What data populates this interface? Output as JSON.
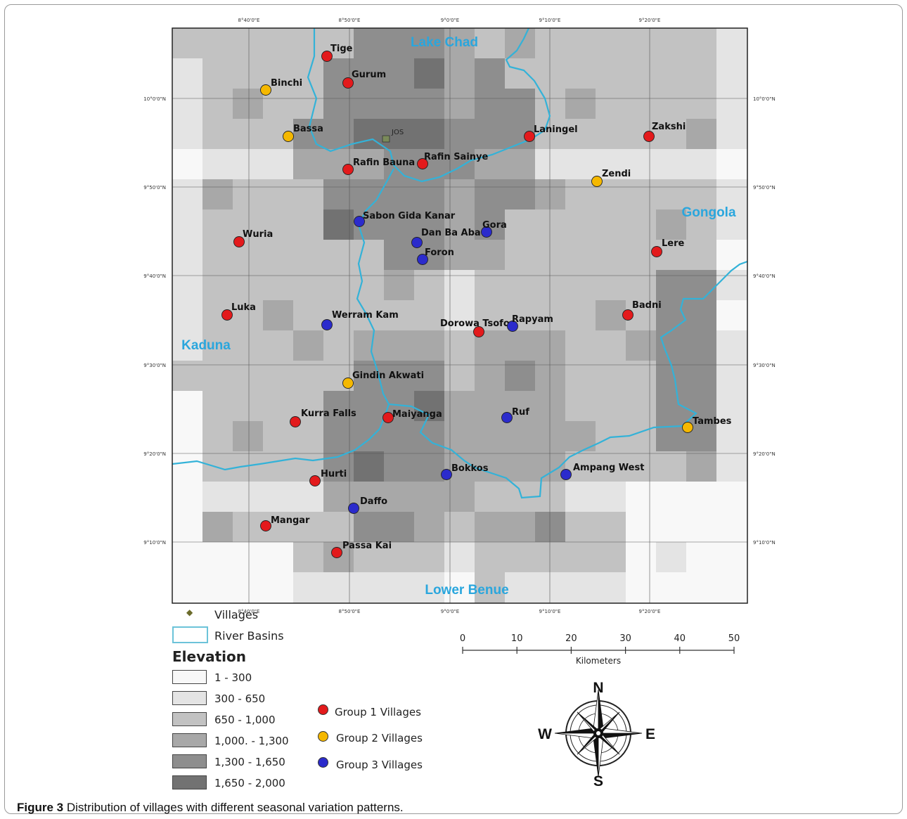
{
  "caption": {
    "label": "Figure 3",
    "text": "Distribution of villages with different seasonal variation patterns."
  },
  "map": {
    "top_ticks": [
      "8°40'0\"E",
      "8°50'0\"E",
      "9°0'0\"E",
      "9°10'0\"E",
      "9°20'0\"E"
    ],
    "bottom_ticks": [
      "8°40'0\"E",
      "8°50'0\"E",
      "9°0'0\"E",
      "9°10'0\"E",
      "9°20'0\"E"
    ],
    "lat_ticks": [
      "10°0'0\"N",
      "9°50'0\"N",
      "9°40'0\"N",
      "9°30'0\"N",
      "9°20'0\"N",
      "9°10'0\"N"
    ],
    "basins": [
      "Lake Chad",
      "Gongola",
      "Kaduna",
      "Lower Benue"
    ],
    "city": "JOS",
    "villages": [
      {
        "name": "Tige",
        "group": 1
      },
      {
        "name": "Gurum",
        "group": 1
      },
      {
        "name": "Binchi",
        "group": 2
      },
      {
        "name": "Bassa",
        "group": 2
      },
      {
        "name": "Rafin Bauna",
        "group": 1
      },
      {
        "name": "Rafin Sainye",
        "group": 1
      },
      {
        "name": "Laningel",
        "group": 1
      },
      {
        "name": "Zakshi",
        "group": 1
      },
      {
        "name": "Zendi",
        "group": 2
      },
      {
        "name": "Sabon Gida Kanar",
        "group": 3
      },
      {
        "name": "Dan Ba Aba",
        "group": 3
      },
      {
        "name": "Gora",
        "group": 3
      },
      {
        "name": "Foron",
        "group": 3
      },
      {
        "name": "Wuria",
        "group": 1
      },
      {
        "name": "Lere",
        "group": 1
      },
      {
        "name": "Luka",
        "group": 1
      },
      {
        "name": "Werram Kam",
        "group": 3
      },
      {
        "name": "Dorowa Tsofo",
        "group": 1
      },
      {
        "name": "Rapyam",
        "group": 3
      },
      {
        "name": "Badni",
        "group": 1
      },
      {
        "name": "Gindin Akwati",
        "group": 2
      },
      {
        "name": "Kurra Falls",
        "group": 1
      },
      {
        "name": "Maiyanga",
        "group": 1
      },
      {
        "name": "Ruf",
        "group": 3
      },
      {
        "name": "Tambes",
        "group": 2
      },
      {
        "name": "Bokkos",
        "group": 3
      },
      {
        "name": "Ampang West",
        "group": 3
      },
      {
        "name": "Hurti",
        "group": 1
      },
      {
        "name": "Daffo",
        "group": 3
      },
      {
        "name": "Mangar",
        "group": 1
      },
      {
        "name": "Passa Kai",
        "group": 1
      }
    ]
  },
  "legend": {
    "villages_label": "Villages",
    "river_basins_label": "River Basins",
    "elevation_title": "Elevation",
    "elevation_classes": [
      "1 - 300",
      "300 - 650",
      "650 - 1,000",
      "1,000. - 1,300",
      "1,300 - 1,650",
      "1,650 - 2,000"
    ],
    "elevation_colors": [
      "#f8f8f8",
      "#e4e4e4",
      "#c2c2c2",
      "#a8a8a8",
      "#8e8e8e",
      "#727272"
    ],
    "groups": [
      {
        "label": "Group 1 Villages",
        "color": "#e31a1c"
      },
      {
        "label": "Group 2 Villages",
        "color": "#f5b800"
      },
      {
        "label": "Group 3 Villages",
        "color": "#2b2bcc"
      }
    ]
  },
  "scale_bar": {
    "ticks": [
      "0",
      "10",
      "20",
      "30",
      "40",
      "50"
    ],
    "unit": "Kilometers"
  },
  "compass": {
    "n": "N",
    "s": "S",
    "e": "E",
    "w": "W"
  },
  "colors": {
    "river": "#33b2d8",
    "basin_label": "#2aa6dd"
  }
}
